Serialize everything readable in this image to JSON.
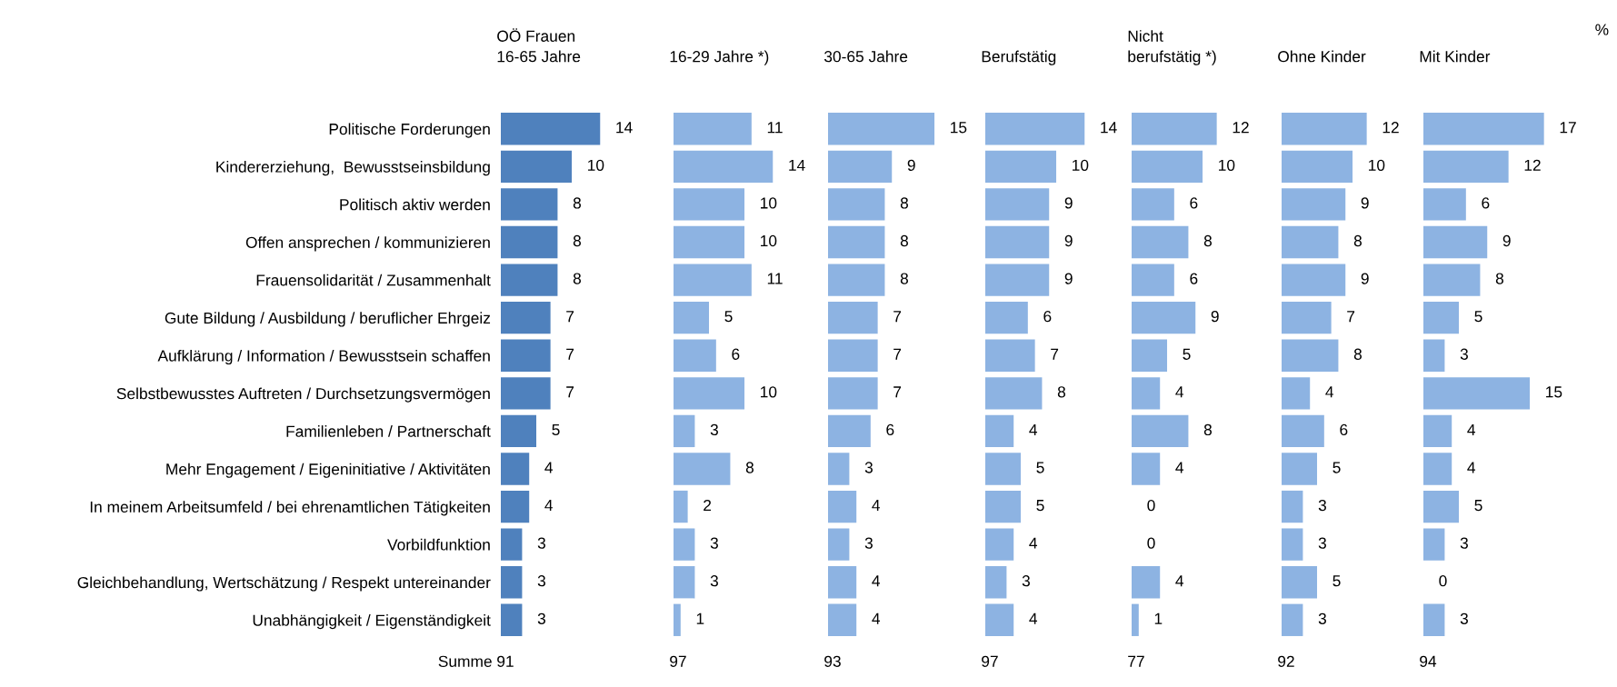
{
  "chart_data": [
    {
      "type": "bar",
      "orientation": "horizontal",
      "title": "OÖ Frauen\n16-65 Jahre",
      "categories": [
        "Politische Forderungen",
        "Kindererziehung,  Bewusstseinsbildung",
        "Politisch aktiv werden",
        "Offen ansprechen / kommunizieren",
        "Frauensolidarität / Zusammenhalt",
        "Gute Bildung / Ausbildung / beruflicher Ehrgeiz",
        "Aufklärung / Information / Bewusstsein schaffen",
        "Selbstbewusstes Auftreten / Durchsetzungsvermögen",
        "Familienleben / Partnerschaft",
        "Mehr Engagement / Eigeninitiative / Aktivitäten",
        "In meinem Arbeitsumfeld / bei ehrenamtlichen Tätigkeiten",
        "Vorbildfunktion",
        "Gleichbehandlung, Wertschätzung / Respekt untereinander",
        "Unabhängigkeit / Eigenständigkeit"
      ],
      "values": [
        14,
        10,
        8,
        8,
        8,
        7,
        7,
        7,
        5,
        4,
        4,
        3,
        3,
        3
      ],
      "color": "#4f81bd",
      "data_labels": true,
      "tick_labels": "y",
      "annotations": [
        "Summe",
        "91"
      ]
    },
    {
      "type": "bar",
      "orientation": "horizontal",
      "title": "16-29 Jahre *)",
      "values": [
        11,
        14,
        10,
        10,
        11,
        5,
        6,
        10,
        3,
        8,
        2,
        3,
        3,
        1
      ],
      "color": "#8db3e2",
      "data_labels": true,
      "tick_labels": false,
      "annotations": [
        "97"
      ]
    },
    {
      "type": "bar",
      "orientation": "horizontal",
      "title": "30-65 Jahre",
      "values": [
        15,
        9,
        8,
        8,
        8,
        7,
        7,
        7,
        6,
        3,
        4,
        3,
        4,
        4
      ],
      "color": "#8db3e2",
      "data_labels": true,
      "tick_labels": false,
      "annotations": [
        "93"
      ]
    },
    {
      "type": "bar",
      "orientation": "horizontal",
      "title": "Berufstätig",
      "values": [
        14,
        10,
        9,
        9,
        9,
        6,
        7,
        8,
        4,
        5,
        5,
        4,
        3,
        4
      ],
      "color": "#8db3e2",
      "data_labels": true,
      "tick_labels": false,
      "annotations": [
        "97"
      ]
    },
    {
      "type": "bar",
      "orientation": "horizontal",
      "title": "Nicht\nberufstätig *)",
      "values": [
        12,
        10,
        6,
        8,
        6,
        9,
        5,
        4,
        8,
        4,
        0,
        0,
        4,
        1
      ],
      "color": "#8db3e2",
      "data_labels": true,
      "tick_labels": false,
      "annotations": [
        "77"
      ]
    },
    {
      "type": "bar",
      "orientation": "horizontal",
      "title": "Ohne Kinder",
      "values": [
        12,
        10,
        9,
        8,
        9,
        7,
        8,
        4,
        6,
        5,
        3,
        3,
        5,
        3
      ],
      "color": "#8db3e2",
      "data_labels": true,
      "tick_labels": false,
      "annotations": [
        "92"
      ]
    },
    {
      "type": "bar",
      "orientation": "horizontal",
      "title": "Mit Kinder",
      "values": [
        17,
        12,
        6,
        9,
        8,
        5,
        3,
        15,
        4,
        4,
        5,
        3,
        0,
        3
      ],
      "color": "#8db3e2",
      "data_labels": true,
      "tick_labels": false,
      "annotations": [
        "%",
        "94"
      ]
    }
  ]
}
